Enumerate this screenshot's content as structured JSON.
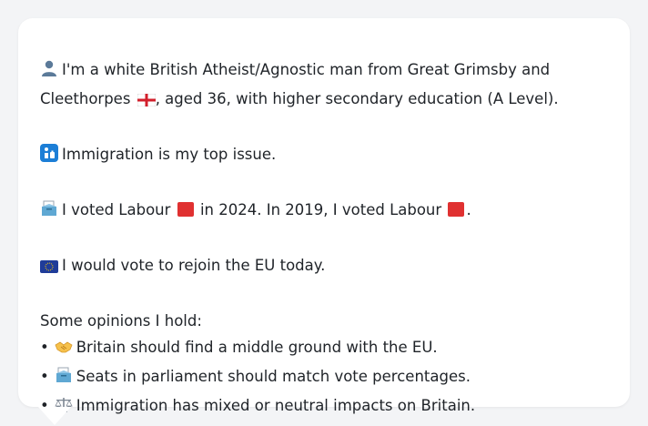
{
  "profile": {
    "line1_text": "I'm a white British Atheist/Agnostic man from Great Grimsby and",
    "line2_text_a": "Cleethorpes",
    "line2_text_b": ", aged 36, with higher secondary education (A Level).",
    "person_icon": "person-icon",
    "england_flag_icon": "england-flag-icon"
  },
  "issue": {
    "icon": "immigration-icon",
    "text": "Immigration is my top issue."
  },
  "vote": {
    "icon": "ballot-box-icon",
    "text_a": "I voted Labour",
    "text_b": "in 2024. In 2019, I voted Labour",
    "text_c": ".",
    "party_color": "#e03131"
  },
  "eu": {
    "icon": "eu-flag-icon",
    "text": "I would vote to rejoin the EU today."
  },
  "opinions": {
    "heading": "Some opinions I hold:",
    "items": [
      {
        "icon": "handshake-icon",
        "text": "Britain should find a middle ground with the EU."
      },
      {
        "icon": "ballot-box-icon",
        "text": "Seats in parliament should match vote percentages."
      },
      {
        "icon": "balance-scale-icon",
        "text": "Immigration has mixed or neutral impacts on Britain."
      }
    ]
  }
}
